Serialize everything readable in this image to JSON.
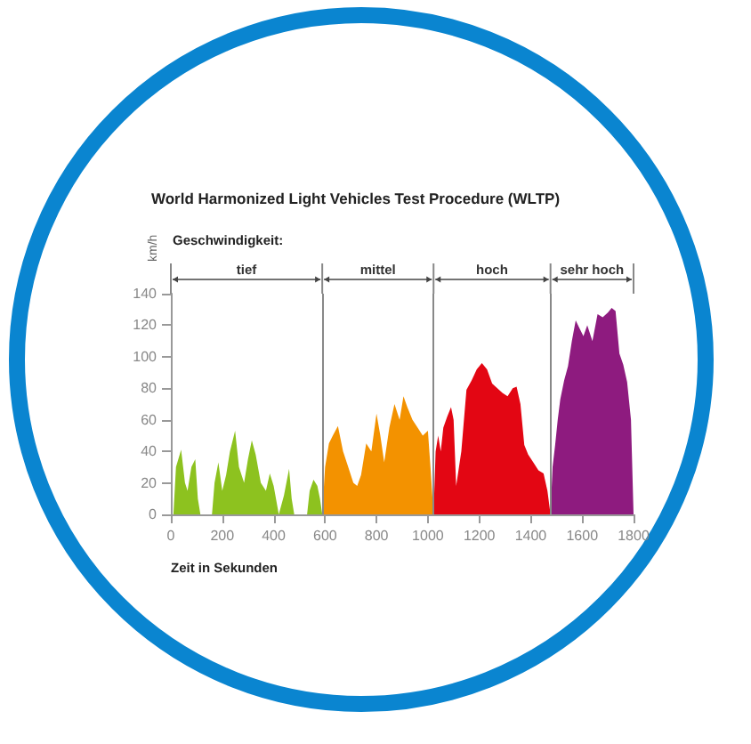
{
  "chart_data": {
    "type": "area",
    "title": "World Harmonized Light Vehicles Test Procedure (WLTP)",
    "subtitle": "Geschwindigkeit:",
    "ylabel": "km/h",
    "xlabel": "Zeit in Sekunden",
    "xlim": [
      0,
      1800
    ],
    "xticks": [
      0,
      200,
      400,
      600,
      800,
      1000,
      1200,
      1400,
      1600,
      1800
    ],
    "ylim": [
      0,
      140
    ],
    "yticks": [
      0,
      20,
      40,
      60,
      80,
      100,
      120,
      140
    ],
    "grid": false,
    "ref_lines": [
      {
        "axis": "x",
        "value": 589,
        "label": null
      },
      {
        "axis": "x",
        "value": 1022,
        "label": null
      },
      {
        "axis": "x",
        "value": 1477,
        "label": null
      }
    ],
    "annotations": [
      "tief",
      "mittel",
      "hoch",
      "sehr hoch"
    ],
    "series": [
      {
        "color": "#8dc21f",
        "x": [
          10,
          20,
          40,
          55,
          65,
          80,
          95,
          105,
          115,
          125,
          160,
          170,
          185,
          200,
          215,
          230,
          250,
          265,
          285,
          300,
          315,
          330,
          350,
          370,
          385,
          400,
          420,
          440,
          460,
          470,
          480,
          530,
          540,
          555,
          570,
          580,
          589
        ],
        "values": [
          0,
          30,
          41,
          20,
          15,
          30,
          35,
          10,
          0,
          0,
          0,
          20,
          33,
          15,
          25,
          40,
          53,
          30,
          20,
          35,
          47,
          38,
          20,
          15,
          26,
          18,
          0,
          12,
          29,
          10,
          0,
          0,
          15,
          22,
          18,
          10,
          0
        ]
      },
      {
        "color": "#f39200",
        "x": [
          589,
          600,
          615,
          630,
          650,
          670,
          690,
          710,
          725,
          740,
          760,
          780,
          800,
          815,
          830,
          850,
          870,
          890,
          905,
          920,
          940,
          960,
          980,
          1000,
          1010,
          1022
        ],
        "values": [
          0,
          30,
          45,
          50,
          56,
          40,
          30,
          20,
          18,
          25,
          45,
          40,
          64,
          50,
          33,
          55,
          70,
          60,
          75,
          68,
          60,
          55,
          50,
          53,
          30,
          0
        ]
      },
      {
        "color": "#e30613",
        "x": [
          1022,
          1030,
          1040,
          1050,
          1060,
          1075,
          1090,
          1100,
          1110,
          1130,
          1150,
          1170,
          1190,
          1210,
          1230,
          1250,
          1270,
          1290,
          1310,
          1330,
          1345,
          1360,
          1375,
          1390,
          1410,
          1430,
          1450,
          1465,
          1477
        ],
        "values": [
          0,
          40,
          50,
          40,
          55,
          62,
          68,
          60,
          18,
          40,
          79,
          85,
          92,
          96,
          92,
          83,
          80,
          77,
          75,
          80,
          81,
          70,
          44,
          38,
          33,
          28,
          26,
          15,
          0
        ]
      },
      {
        "color": "#8e1b7f",
        "x": [
          1477,
          1485,
          1495,
          1505,
          1515,
          1530,
          1545,
          1560,
          1575,
          1590,
          1605,
          1620,
          1640,
          1660,
          1680,
          1700,
          1715,
          1730,
          1745,
          1760,
          1775,
          1790,
          1800
        ],
        "values": [
          0,
          30,
          44,
          60,
          73,
          85,
          94,
          110,
          123,
          118,
          113,
          120,
          110,
          127,
          125,
          128,
          131,
          129,
          102,
          95,
          84,
          60,
          0
        ]
      }
    ]
  }
}
